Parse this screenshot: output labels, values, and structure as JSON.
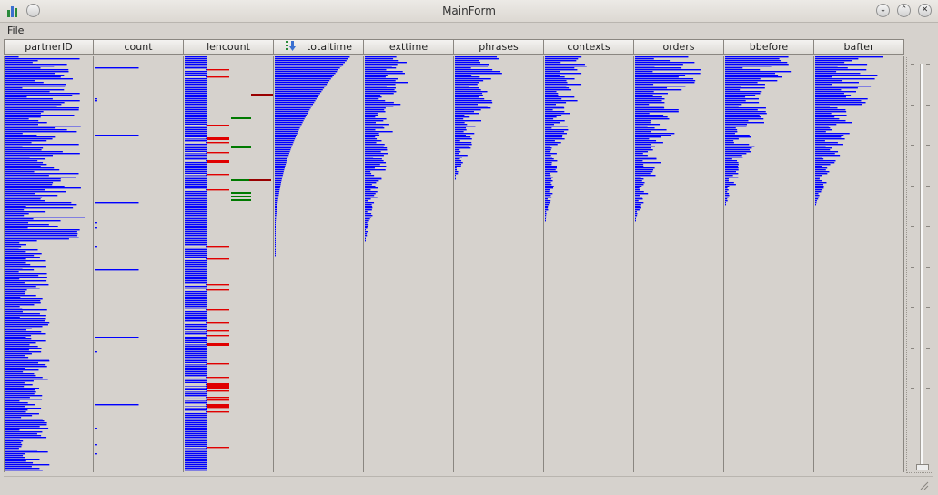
{
  "window": {
    "title": "MainForm",
    "app_icon": "bar-chart-icon",
    "controls": [
      "chevron-down-icon",
      "chevron-up-icon",
      "close-icon"
    ]
  },
  "menu": {
    "file": "File",
    "file_mnemonic": "F",
    "file_rest": "ile"
  },
  "table": {
    "sorted_column": "totaltime",
    "sort_icon": "sort-descending-icon",
    "columns": [
      {
        "key": "partnerID",
        "label": "partnerID",
        "color": "#0000ff",
        "profile": "partner",
        "max": 1.0
      },
      {
        "key": "count",
        "label": "count",
        "color": "#0000ff",
        "profile": "count",
        "max": 0.55
      },
      {
        "key": "lencount",
        "label": "lencount",
        "color": "#0000ff",
        "profile": "lencount",
        "max": 1.0
      },
      {
        "key": "totaltime",
        "label": "totaltime",
        "color": "#0000ff",
        "profile": "curve",
        "max": 0.85
      },
      {
        "key": "exttime",
        "label": "exttime",
        "color": "#0000ff",
        "profile": "decay",
        "max": 0.6,
        "len": 0.45
      },
      {
        "key": "phrases",
        "label": "phrases",
        "color": "#0000ff",
        "profile": "decay",
        "max": 0.7,
        "len": 0.3
      },
      {
        "key": "contexts",
        "label": "contexts",
        "color": "#0000ff",
        "profile": "decay",
        "max": 0.5,
        "len": 0.4
      },
      {
        "key": "orders",
        "label": "orders",
        "color": "#0000ff",
        "profile": "decay",
        "max": 0.85,
        "len": 0.4
      },
      {
        "key": "bbefore",
        "label": "bbefore",
        "color": "#0000ff",
        "profile": "decay",
        "max": 0.85,
        "len": 0.36
      },
      {
        "key": "bafter",
        "label": "bafter",
        "color": "#0000ff",
        "profile": "decay",
        "max": 0.85,
        "len": 0.36
      }
    ]
  },
  "colors": {
    "bar": "#0000ff",
    "accent_red": "#e00000",
    "accent_green": "#007a00",
    "accent_darkred": "#990000"
  }
}
